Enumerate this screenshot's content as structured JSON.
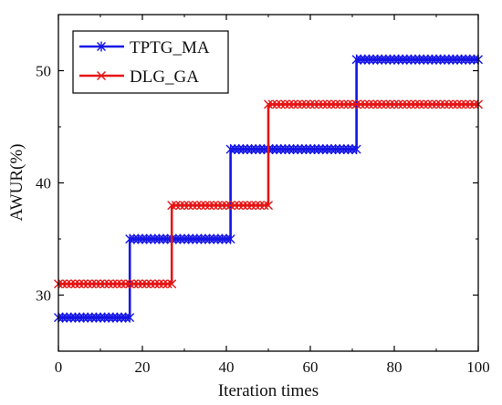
{
  "chart_data": {
    "type": "line",
    "title": "",
    "xlabel": "Iteration times",
    "ylabel": "AWUR(%)",
    "xlim": [
      0,
      100
    ],
    "ylim": [
      25,
      55
    ],
    "xticks": [
      0,
      20,
      40,
      60,
      80,
      100
    ],
    "yticks": [
      30,
      40,
      50
    ],
    "legend_position": "top-left",
    "grid": false,
    "series": [
      {
        "name": "TPTG_MA",
        "color": "#1515e6",
        "marker": "asterisk",
        "steps": [
          [
            0,
            17,
            28
          ],
          [
            17,
            41,
            35
          ],
          [
            41,
            71,
            43
          ],
          [
            71,
            100,
            51
          ]
        ]
      },
      {
        "name": "DLG_GA",
        "color": "#e61515",
        "marker": "x",
        "steps": [
          [
            0,
            27,
            31
          ],
          [
            27,
            50,
            38
          ],
          [
            50,
            100,
            47
          ]
        ]
      }
    ]
  }
}
